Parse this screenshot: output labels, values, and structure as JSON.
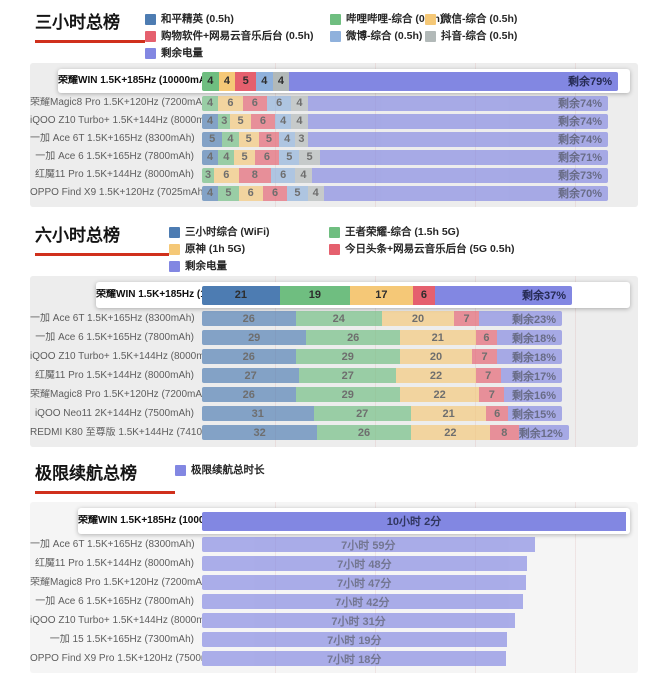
{
  "colors": {
    "accent_underline": "#d0301c",
    "panel_bg": "#ededed",
    "panel_bg_light": "#f5f5f5",
    "blue": "#4d7cb2",
    "green": "#6fbe80",
    "orange": "#f5c877",
    "red": "#e5606e",
    "lightblue": "#8fb1dc",
    "gray": "#b2b9b8",
    "purple": "#8287e2"
  },
  "chart_data": [
    {
      "kind": "stacked",
      "type": "bar",
      "orientation": "horizontal",
      "stacked": true,
      "unit": "percent_of_battery",
      "title": "三小时总榜",
      "highlight_category": 0,
      "categories": [
        "荣耀WIN 1.5K+185Hz (10000mAh)",
        "荣耀Magic8 Pro 1.5K+120Hz (7200mAh)",
        "iQOO Z10 Turbo+ 1.5K+144Hz (8000mAh)",
        "一加 Ace 6T 1.5K+165Hz (8300mAh)",
        "一加 Ace 6 1.5K+165Hz (7800mAh)",
        "红魔11 Pro 1.5K+144Hz (8000mAh)",
        "OPPO Find X9 1.5K+120Hz (7025mAh)"
      ],
      "series": [
        {
          "name": "和平精英 (0.5h)",
          "color": "#4d7cb2",
          "values": [
            0,
            0,
            4,
            5,
            4,
            0,
            4
          ]
        },
        {
          "name": "哔哩哔哩-综合 (0.5h)",
          "color": "#6fbe80",
          "values": [
            4,
            4,
            3,
            4,
            4,
            3,
            5
          ]
        },
        {
          "name": "微信-综合 (0.5h)",
          "color": "#f5c877",
          "values": [
            4,
            6,
            5,
            5,
            5,
            6,
            6
          ]
        },
        {
          "name": "购物软件+网易云音乐后台 (0.5h)",
          "color": "#e5606e",
          "values": [
            5,
            6,
            6,
            5,
            6,
            8,
            6
          ]
        },
        {
          "name": "微博-综合 (0.5h)",
          "color": "#8fb1dc",
          "values": [
            4,
            6,
            4,
            4,
            5,
            6,
            5
          ]
        },
        {
          "name": "抖音-综合 (0.5h)",
          "color": "#b2b9b8",
          "values": [
            4,
            4,
            4,
            3,
            5,
            4,
            4
          ]
        }
      ],
      "remain": {
        "name": "剩余电量",
        "color": "#8287e2",
        "values": [
          79,
          74,
          74,
          74,
          71,
          73,
          70
        ],
        "labels": [
          "剩余79%",
          "剩余74%",
          "剩余74%",
          "剩余74%",
          "剩余71%",
          "剩余73%",
          "剩余70%"
        ]
      },
      "legend_columns": [
        [
          {
            "label": "和平精英 (0.5h)",
            "color": "#4d7cb2"
          },
          {
            "label": "购物软件+网易云音乐后台 (0.5h)",
            "color": "#e5606e"
          },
          {
            "label": "剩余电量",
            "color": "#8287e2"
          }
        ],
        [
          {
            "label": "哔哩哔哩-综合 (0.5h)",
            "color": "#6fbe80"
          },
          {
            "label": "微博-综合 (0.5h)",
            "color": "#8fb1dc"
          }
        ],
        [
          {
            "label": "微信-综合 (0.5h)",
            "color": "#f5c877"
          },
          {
            "label": "抖音-综合 (0.5h)",
            "color": "#b2b9b8"
          }
        ]
      ]
    },
    {
      "kind": "stacked",
      "type": "bar",
      "orientation": "horizontal",
      "stacked": true,
      "unit": "percent_of_battery",
      "title": "六小时总榜",
      "highlight_category": 0,
      "categories": [
        "荣耀WIN 1.5K+185Hz (10000mAh)",
        "一加 Ace 6T 1.5K+165Hz (8300mAh)",
        "一加 Ace 6 1.5K+165Hz (7800mAh)",
        "iQOO Z10 Turbo+ 1.5K+144Hz (8000mAh)",
        "红魔11 Pro 1.5K+144Hz (8000mAh)",
        "荣耀Magic8 Pro 1.5K+120Hz (7200mAh)",
        "iQOO Neo11 2K+144Hz (7500mAh)",
        "REDMI K80 至尊版 1.5K+144Hz (7410mAh)"
      ],
      "series": [
        {
          "name": "三小时综合 (WiFi)",
          "color": "#4d7cb2",
          "values": [
            21,
            26,
            29,
            26,
            27,
            26,
            31,
            32
          ]
        },
        {
          "name": "王者荣耀-综合 (1.5h 5G)",
          "color": "#6fbe80",
          "values": [
            19,
            24,
            26,
            29,
            27,
            29,
            27,
            26
          ]
        },
        {
          "name": "原神 (1h 5G)",
          "color": "#f5c877",
          "values": [
            17,
            20,
            21,
            20,
            22,
            22,
            21,
            22
          ]
        },
        {
          "name": "今日头条+网易云音乐后台 (5G 0.5h)",
          "color": "#e5606e",
          "values": [
            6,
            7,
            6,
            7,
            7,
            7,
            6,
            8
          ]
        }
      ],
      "remain": {
        "name": "剩余电量",
        "color": "#8287e2",
        "values": [
          37,
          23,
          18,
          18,
          17,
          16,
          15,
          12
        ],
        "labels": [
          "剩余37%",
          "剩余23%",
          "剩余18%",
          "剩余18%",
          "剩余17%",
          "剩余16%",
          "剩余15%",
          "剩余12%"
        ]
      },
      "legend_columns": [
        [
          {
            "label": "三小时综合 (WiFi)",
            "color": "#4d7cb2"
          },
          {
            "label": "原神 (1h 5G)",
            "color": "#f5c877"
          },
          {
            "label": "剩余电量",
            "color": "#8287e2"
          }
        ],
        [
          {
            "label": "王者荣耀-综合 (1.5h 5G)",
            "color": "#6fbe80"
          },
          {
            "label": "今日头条+网易云音乐后台 (5G 0.5h)",
            "color": "#e5606e"
          }
        ]
      ]
    },
    {
      "kind": "duration",
      "type": "bar",
      "orientation": "horizontal",
      "title": "极限续航总榜",
      "highlight_category": 0,
      "bar_color": "#8287e2",
      "xmax_minutes": 602,
      "categories": [
        "荣耀WIN 1.5K+185Hz (10000mAh)",
        "一加 Ace 6T 1.5K+165Hz (8300mAh)",
        "红魔11 Pro 1.5K+144Hz (8000mAh)",
        "荣耀Magic8 Pro 1.5K+120Hz (7200mAh)",
        "一加 Ace 6 1.5K+165Hz (7800mAh)",
        "iQOO Z10 Turbo+ 1.5K+144Hz (8000mAh)",
        "一加 15 1.5K+165Hz (7300mAh)",
        "OPPO Find X9 Pro 1.5K+120Hz (7500mAh)"
      ],
      "value_labels": [
        "10小时 2分",
        "7小时 59分",
        "7小时 48分",
        "7小时 47分",
        "7小时 42分",
        "7小时 31分",
        "7小时 19分",
        "7小时 18分"
      ],
      "values_minutes": [
        602,
        479,
        468,
        467,
        462,
        451,
        439,
        438
      ],
      "legend_columns": [
        [
          {
            "label": "极限续航总时长",
            "color": "#8287e2"
          }
        ]
      ]
    }
  ]
}
